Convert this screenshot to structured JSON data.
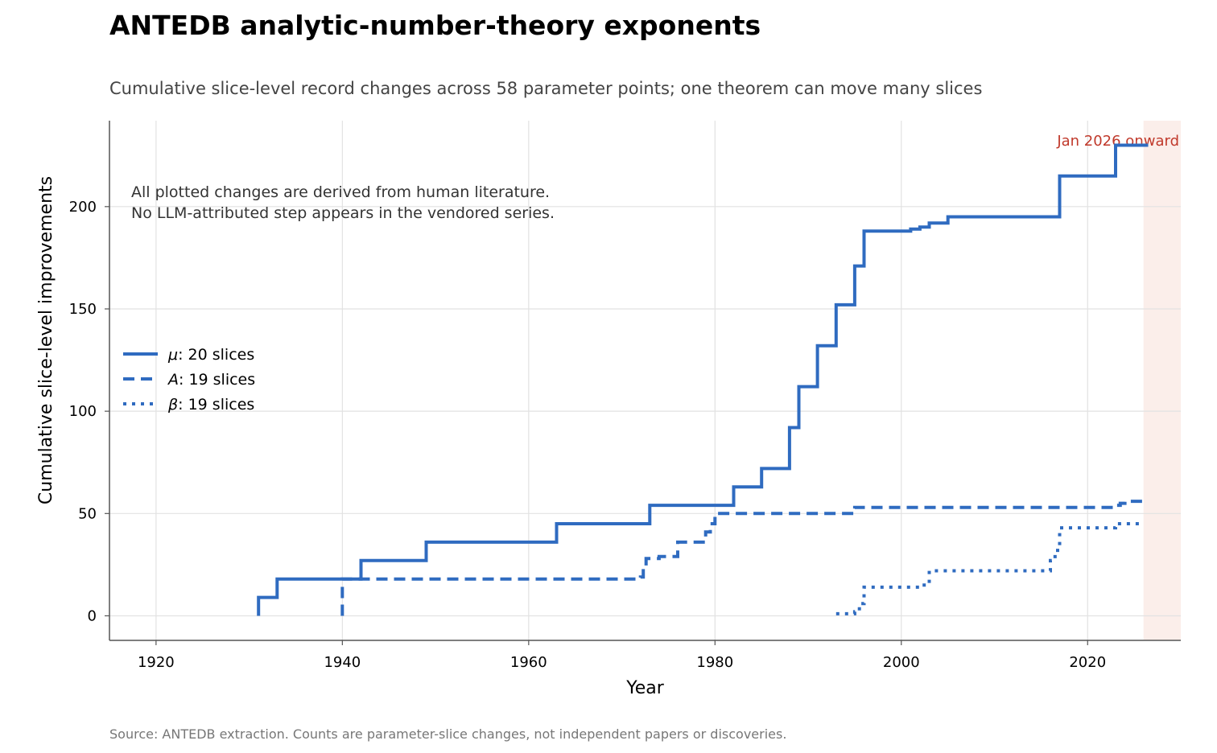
{
  "title": "ANTEDB analytic-number-theory exponents",
  "subtitle": "Cumulative slice-level record changes across 58 parameter points; one theorem can move many slices",
  "source": "Source: ANTEDB extraction. Counts are parameter-slice changes, not independent papers or discoveries.",
  "colors": {
    "series": "#2f6bc0",
    "highlight": "#c0392b",
    "highlight_fill": "#fbeeea"
  },
  "chart_data": {
    "type": "line",
    "step": true,
    "xlabel": "Year",
    "ylabel": "Cumulative slice-level improvements",
    "xlim": [
      1915,
      2030
    ],
    "ylim": [
      -12,
      242
    ],
    "xticks": [
      1920,
      1940,
      1960,
      1980,
      2000,
      2020
    ],
    "yticks": [
      0,
      50,
      100,
      150,
      200
    ],
    "grid": true,
    "legend_position": "center-left",
    "highlight_region": {
      "x_start": 2026,
      "x_end": 2030,
      "label": "Jan 2026 onward"
    },
    "annotation": [
      "All plotted changes are derived from human literature.",
      "No LLM-attributed step appears in the vendored series."
    ],
    "series": [
      {
        "name": "μ: 20 slices",
        "symbol": "μ",
        "suffix": ": 20 slices",
        "style": "solid",
        "x": [
          1931,
          1933,
          1942,
          1949,
          1963,
          1973,
          1982,
          1985,
          1988,
          1989,
          1991,
          1993,
          1995,
          1996,
          2001,
          2002,
          2003,
          2005,
          2017,
          2023,
          2026.5
        ],
        "y": [
          9,
          18,
          27,
          36,
          45,
          54,
          63,
          72,
          92,
          112,
          132,
          152,
          171,
          188,
          189,
          190,
          192,
          195,
          215,
          230,
          230
        ]
      },
      {
        "name": "A: 19 slices",
        "symbol": "A",
        "suffix": ": 19 slices",
        "style": "dashed",
        "x": [
          1940,
          1940,
          1972,
          1972.3,
          1972.6,
          1974,
          1976,
          1979,
          1979.5,
          1980,
          1995,
          2023,
          2023.5,
          2024,
          2026.5
        ],
        "y": [
          0,
          18,
          19,
          24,
          28,
          29,
          36,
          41,
          45,
          50,
          53,
          54,
          55,
          56,
          56
        ]
      },
      {
        "name": "β: 19 slices",
        "symbol": "β",
        "suffix": ": 19 slices",
        "style": "dotted",
        "x": [
          1993,
          1995,
          1995.5,
          1996,
          2001,
          2002,
          2003,
          2016,
          2016.5,
          2017,
          2023,
          2026
        ],
        "y": [
          1,
          2,
          6,
          14,
          14,
          15,
          22,
          27,
          32,
          43,
          45,
          45
        ]
      }
    ]
  }
}
